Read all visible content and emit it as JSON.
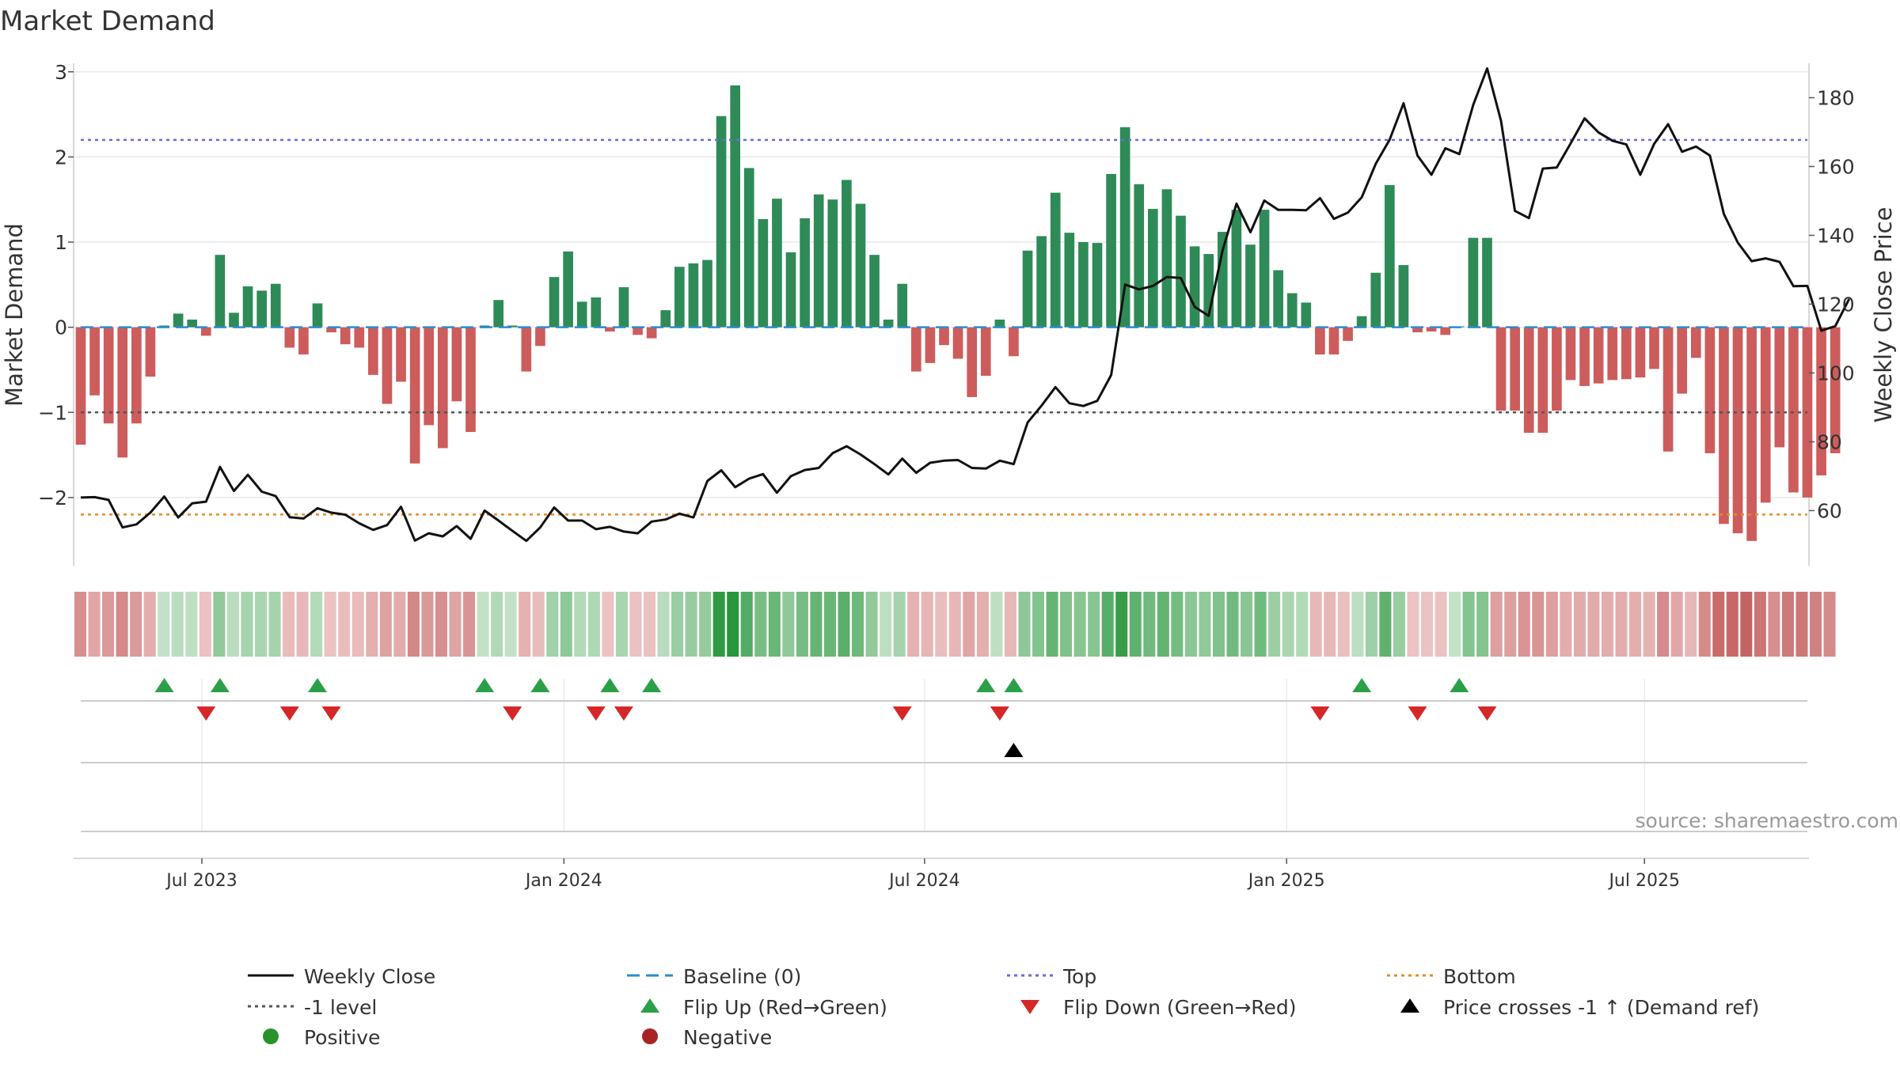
{
  "chart_data": {
    "type": "bar",
    "title": "Market Demand",
    "ylabel_left": "Market Demand",
    "ylabel_right": "Weekly Close Price",
    "ylim_left": [
      -2.8,
      3.1
    ],
    "ylim_right": [
      44.0,
      190.0
    ],
    "yticks_left": [
      3,
      2,
      1,
      0,
      -1,
      -2
    ],
    "yticks_left_labels": [
      "3",
      "2",
      "1",
      "0",
      "−1",
      "−2"
    ],
    "yticks_right": [
      180,
      160,
      140,
      120,
      100,
      80,
      60
    ],
    "yticks_right_labels": [
      "180",
      "160",
      "140",
      "120",
      "100",
      "80",
      "60"
    ],
    "x_ticks": [
      8.7,
      34.7,
      60.6,
      86.6,
      112.3
    ],
    "x_tick_labels": [
      "Jul 2023",
      "Jan 2024",
      "Jul 2024",
      "Jan 2025",
      "Jul 2025"
    ],
    "n_weeks": 125,
    "demand": [
      -1.38,
      -0.8,
      -1.13,
      -1.53,
      -1.13,
      -0.58,
      0.02,
      0.16,
      0.09,
      -0.1,
      0.85,
      0.17,
      0.48,
      0.43,
      0.51,
      -0.24,
      -0.32,
      0.28,
      -0.06,
      -0.2,
      -0.24,
      -0.56,
      -0.9,
      -0.64,
      -1.6,
      -1.15,
      -1.42,
      -0.87,
      -1.23,
      0.02,
      0.32,
      0.02,
      -0.52,
      -0.22,
      0.59,
      0.89,
      0.3,
      0.35,
      -0.05,
      0.47,
      -0.09,
      -0.13,
      0.2,
      0.71,
      0.75,
      0.79,
      2.48,
      2.84,
      1.87,
      1.27,
      1.51,
      0.88,
      1.28,
      1.56,
      1.5,
      1.73,
      1.45,
      0.85,
      0.09,
      0.51,
      -0.52,
      -0.42,
      -0.21,
      -0.37,
      -0.82,
      -0.57,
      0.09,
      -0.34,
      0.9,
      1.07,
      1.58,
      1.11,
      1.0,
      0.99,
      1.8,
      2.35,
      1.68,
      1.39,
      1.62,
      1.31,
      0.95,
      0.86,
      1.12,
      1.38,
      0.97,
      1.38,
      0.67,
      0.4,
      0.29,
      -0.32,
      -0.32,
      -0.16,
      0.13,
      0.64,
      1.67,
      0.73,
      -0.06,
      -0.05,
      -0.09,
      0.01,
      1.05,
      1.05,
      -0.98,
      -0.98,
      -1.24,
      -1.24,
      -0.98,
      -0.62,
      -0.69,
      -0.66,
      -0.62,
      -0.61,
      -0.59,
      -0.49,
      -1.46,
      -0.78,
      -0.36,
      -1.48,
      -2.31,
      -2.42,
      -2.51,
      -2.06,
      -1.41,
      -1.94,
      -2.0,
      -1.74,
      -1.48
    ],
    "close": [
      63.8,
      63.9,
      63.1,
      55.1,
      56.0,
      59.4,
      64.1,
      58.0,
      62.1,
      62.6,
      72.7,
      65.7,
      70.4,
      65.5,
      64.2,
      58.1,
      57.7,
      60.7,
      59.4,
      58.8,
      56.3,
      54.4,
      55.8,
      61.1,
      51.3,
      53.4,
      52.5,
      55.5,
      51.8,
      60.0,
      57.1,
      54.1,
      51.2,
      55.1,
      60.9,
      57.1,
      57.1,
      54.6,
      55.3,
      53.9,
      53.4,
      56.8,
      57.4,
      59.1,
      58.0,
      68.6,
      71.7,
      66.8,
      69.3,
      70.6,
      65.2,
      70.0,
      71.8,
      72.4,
      76.7,
      78.7,
      76.3,
      73.5,
      70.5,
      75.1,
      71.0,
      73.9,
      74.5,
      74.7,
      72.4,
      72.2,
      74.5,
      73.5,
      85.6,
      90.5,
      95.9,
      91.2,
      90.4,
      91.9,
      99.4,
      125.7,
      124.3,
      125.3,
      127.9,
      127.6,
      119.2,
      116.6,
      135.6,
      149.2,
      140.9,
      150.1,
      147.4,
      147.4,
      147.3,
      150.8,
      144.8,
      146.6,
      151.1,
      160.8,
      167.8,
      178.4,
      163.2,
      157.6,
      165.3,
      163.6,
      177.9,
      188.5,
      173.3,
      147.1,
      145.0,
      159.4,
      159.7,
      166.7,
      174.0,
      169.9,
      167.5,
      166.4,
      157.6,
      166.6,
      172.3,
      164.3,
      165.8,
      163.2,
      146.2,
      137.9,
      132.5,
      133.3,
      132.3,
      125.2,
      125.3,
      112.3,
      113.6,
      121.5
    ],
    "reference_lines": [
      {
        "name": "Top",
        "value": 2.2,
        "color": "#6a6ad9"
      },
      {
        "name": "-1 level",
        "value": -1.0,
        "color": "#555555"
      },
      {
        "name": "Bottom",
        "value": -2.2,
        "color": "#e88a24"
      },
      {
        "name": "Baseline (0)",
        "value": 0,
        "color": "#2b8ccf"
      }
    ],
    "flip_up_weeks": [
      6,
      10,
      17,
      29,
      33,
      38,
      41,
      65,
      67,
      92,
      99
    ],
    "flip_down_weeks": [
      9,
      15,
      18,
      31,
      37,
      39,
      59,
      66,
      89,
      96,
      101
    ],
    "price_cross_weeks": [
      67
    ],
    "source": "source: sharemaestro.com",
    "colors": {
      "positive_bar": "#2e8b57",
      "negative_bar": "#cd5c5c",
      "close_line": "#111111",
      "flip_up": "#2ca048",
      "flip_down": "#d62728",
      "cross_marker": "#000000",
      "positive_dot": "#2a922a",
      "negative_dot": "#a82424"
    }
  },
  "legend": {
    "weekly_close": "Weekly Close",
    "baseline": "Baseline (0)",
    "top": "Top",
    "bottom": "Bottom",
    "minus1": "-1 level",
    "flip_up": "Flip Up (Red→Green)",
    "flip_down": "Flip Down (Green→Red)",
    "price_cross": "Price crosses -1 ↑ (Demand ref)",
    "positive": "Positive",
    "negative": "Negative"
  }
}
